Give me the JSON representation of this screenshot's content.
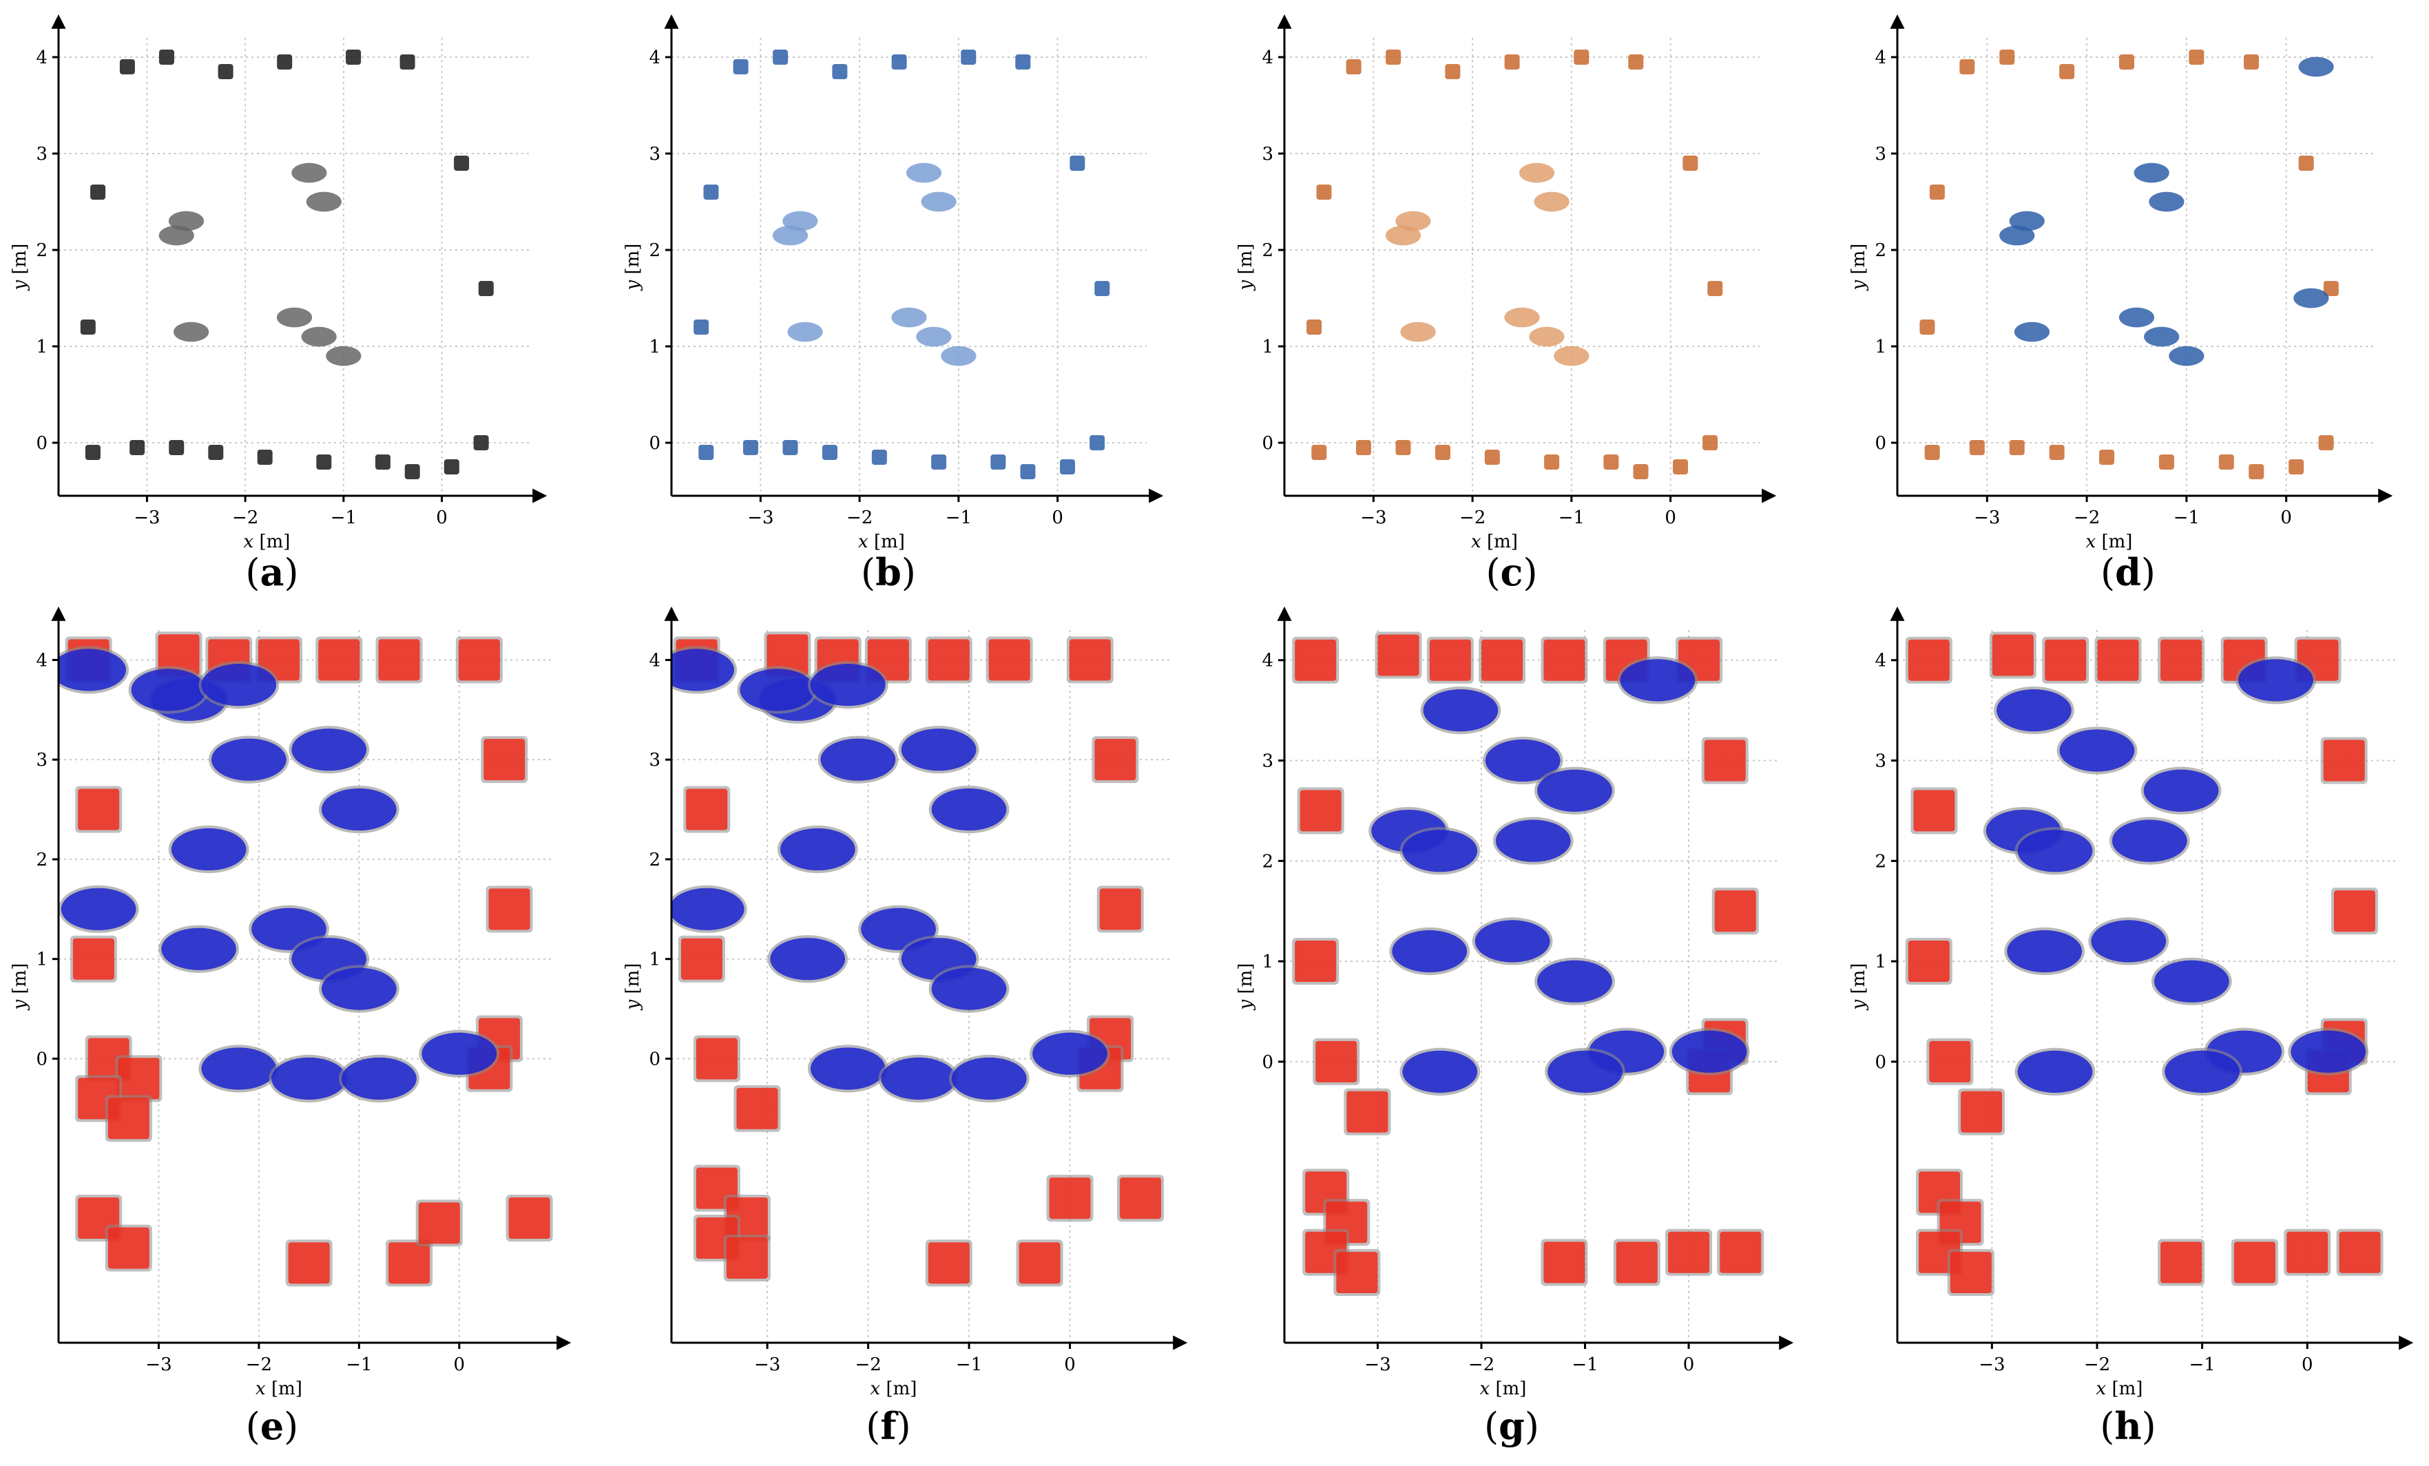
{
  "chart_data": [
    {
      "type": "scatter",
      "panel": "a",
      "caption": "(a)",
      "xlabel": "x [m]",
      "ylabel": "y [m]",
      "xticks": [
        -3,
        -2,
        -1,
        0
      ],
      "yticks": [
        0,
        1,
        2,
        3,
        4
      ],
      "xlim": [
        -3.9,
        0.9
      ],
      "ylim": [
        -0.55,
        4.2
      ],
      "grid": true,
      "colors": {
        "walls": "#1a1a1a",
        "objects": "#666666"
      },
      "series": [
        {
          "role": "walls",
          "color": "#1a1a1a",
          "x": [
            -3.55,
            -3.6,
            -3.5,
            -3.2,
            -2.8,
            -2.2,
            -1.6,
            -0.9,
            -0.35,
            0.2,
            0.45,
            0.4,
            0.1,
            -0.3,
            -0.6,
            -1.2,
            -1.8,
            -2.3,
            -2.7,
            -3.1
          ],
          "y": [
            -0.1,
            1.2,
            2.6,
            3.9,
            4.0,
            3.85,
            3.95,
            4.0,
            3.95,
            2.9,
            1.6,
            0.0,
            -0.25,
            -0.3,
            -0.2,
            -0.2,
            -0.15,
            -0.1,
            -0.05,
            -0.05
          ]
        },
        {
          "role": "objects",
          "color": "#666666",
          "x": [
            -2.6,
            -1.35,
            -1.2,
            -2.7,
            -2.55,
            -1.5,
            -1.25,
            -1.0
          ],
          "y": [
            2.3,
            2.8,
            2.5,
            2.15,
            1.15,
            1.3,
            1.1,
            0.9
          ]
        }
      ]
    },
    {
      "type": "scatter",
      "panel": "b",
      "caption": "(b)",
      "xlabel": "x [m]",
      "ylabel": "y [m]",
      "xticks": [
        -3,
        -2,
        -1,
        0
      ],
      "yticks": [
        0,
        1,
        2,
        3,
        4
      ],
      "xlim": [
        -3.9,
        0.9
      ],
      "ylim": [
        -0.55,
        4.2
      ],
      "grid": true,
      "colors": {
        "walls": "#2f5fa8",
        "objects": "#7b9fd3"
      },
      "series": [
        {
          "role": "walls",
          "color": "#2f5fa8",
          "x": [
            -3.55,
            -3.6,
            -3.5,
            -3.2,
            -2.8,
            -2.2,
            -1.6,
            -0.9,
            -0.35,
            0.2,
            0.45,
            0.4,
            0.1,
            -0.3,
            -0.6,
            -1.2,
            -1.8,
            -2.3,
            -2.7,
            -3.1
          ],
          "y": [
            -0.1,
            1.2,
            2.6,
            3.9,
            4.0,
            3.85,
            3.95,
            4.0,
            3.95,
            2.9,
            1.6,
            0.0,
            -0.25,
            -0.3,
            -0.2,
            -0.2,
            -0.15,
            -0.1,
            -0.05,
            -0.05
          ]
        },
        {
          "role": "objects",
          "color": "#7b9fd3",
          "x": [
            -2.6,
            -1.35,
            -1.2,
            -2.7,
            -2.55,
            -1.5,
            -1.25,
            -1.0
          ],
          "y": [
            2.3,
            2.8,
            2.5,
            2.15,
            1.15,
            1.3,
            1.1,
            0.9
          ]
        }
      ]
    },
    {
      "type": "scatter",
      "panel": "c",
      "caption": "(c)",
      "xlabel": "x [m]",
      "ylabel": "y [m]",
      "xticks": [
        -3,
        -2,
        -1,
        0
      ],
      "yticks": [
        0,
        1,
        2,
        3,
        4
      ],
      "xlim": [
        -3.9,
        0.9
      ],
      "ylim": [
        -0.55,
        4.2
      ],
      "grid": true,
      "colors": {
        "walls": "#c8692e",
        "objects": "#e0a070"
      },
      "series": [
        {
          "role": "walls",
          "color": "#c8692e",
          "x": [
            -3.55,
            -3.6,
            -3.5,
            -3.2,
            -2.8,
            -2.2,
            -1.6,
            -0.9,
            -0.35,
            0.2,
            0.45,
            0.4,
            0.1,
            -0.3,
            -0.6,
            -1.2,
            -1.8,
            -2.3,
            -2.7,
            -3.1
          ],
          "y": [
            -0.1,
            1.2,
            2.6,
            3.9,
            4.0,
            3.85,
            3.95,
            4.0,
            3.95,
            2.9,
            1.6,
            0.0,
            -0.25,
            -0.3,
            -0.2,
            -0.2,
            -0.15,
            -0.1,
            -0.05,
            -0.05
          ]
        },
        {
          "role": "objects",
          "color": "#e0a070",
          "x": [
            -2.6,
            -1.35,
            -1.2,
            -2.7,
            -2.55,
            -1.5,
            -1.25,
            -1.0
          ],
          "y": [
            2.3,
            2.8,
            2.5,
            2.15,
            1.15,
            1.3,
            1.1,
            0.9
          ]
        }
      ]
    },
    {
      "type": "scatter",
      "panel": "d",
      "caption": "(d)",
      "xlabel": "x [m]",
      "ylabel": "y [m]",
      "xticks": [
        -3,
        -2,
        -1,
        0
      ],
      "yticks": [
        0,
        1,
        2,
        3,
        4
      ],
      "xlim": [
        -3.9,
        0.9
      ],
      "ylim": [
        -0.55,
        4.2
      ],
      "grid": true,
      "colors": {
        "walls": "#c8692e",
        "objects": "#2f5fa8"
      },
      "series": [
        {
          "role": "walls",
          "color": "#c8692e",
          "x": [
            -3.55,
            -3.6,
            -3.5,
            -3.2,
            -2.8,
            -2.2,
            -1.6,
            -0.9,
            -0.35,
            0.2,
            0.45,
            0.4,
            0.1,
            -0.3,
            -0.6,
            -1.2,
            -1.8,
            -2.3,
            -2.7,
            -3.1
          ],
          "y": [
            -0.1,
            1.2,
            2.6,
            3.9,
            4.0,
            3.85,
            3.95,
            4.0,
            3.95,
            2.9,
            1.6,
            0.0,
            -0.25,
            -0.3,
            -0.2,
            -0.2,
            -0.15,
            -0.1,
            -0.05,
            -0.05
          ]
        },
        {
          "role": "objects",
          "color": "#2f5fa8",
          "x": [
            -2.6,
            -1.35,
            -1.2,
            -2.7,
            -2.55,
            -1.5,
            -1.25,
            -1.0,
            0.25,
            0.3
          ],
          "y": [
            2.3,
            2.8,
            2.5,
            2.15,
            1.15,
            1.3,
            1.1,
            0.9,
            1.5,
            3.9
          ]
        }
      ]
    },
    {
      "type": "scatter",
      "panel": "e",
      "caption": "(e)",
      "xlabel": "x [m]",
      "ylabel": "y [m]",
      "xticks": [
        -3,
        -2,
        -1,
        0
      ],
      "yticks": [
        0,
        1,
        2,
        3,
        4
      ],
      "xlim": [
        -4.0,
        0.95
      ],
      "ylim": [
        -2.85,
        4.3
      ],
      "grid": true,
      "colors": {
        "walls": "#f02a1a",
        "objects": "#1a22d0",
        "outline": "#8a8a8a"
      },
      "series": [
        {
          "role": "walls",
          "color": "#f02a1a",
          "x": [
            -3.7,
            -3.6,
            -3.65,
            -3.5,
            -3.2,
            -2.8,
            -2.3,
            -1.8,
            -1.2,
            -0.6,
            0.2,
            0.45,
            0.5,
            0.4,
            0.3,
            -3.6,
            -3.3,
            -3.6,
            -3.3,
            -1.5,
            -0.5,
            -0.2,
            0.7
          ],
          "y": [
            4.0,
            2.5,
            1.0,
            0.0,
            -0.2,
            4.05,
            4.0,
            4.0,
            4.0,
            4.0,
            4.0,
            3.0,
            1.5,
            0.2,
            -0.1,
            -0.4,
            -0.6,
            -1.6,
            -1.9,
            -2.05,
            -2.05,
            -1.65,
            -1.6
          ]
        },
        {
          "role": "objects",
          "color": "#1a22d0",
          "x": [
            -2.7,
            -2.1,
            -1.3,
            -1.0,
            -2.5,
            -2.6,
            -1.7,
            -1.3,
            -1.0,
            -2.2,
            -1.5,
            -0.8,
            -3.6,
            -3.7,
            0.0,
            -2.9,
            -2.2
          ],
          "y": [
            3.6,
            3.0,
            3.1,
            2.5,
            2.1,
            1.1,
            1.3,
            1.0,
            0.7,
            -0.1,
            -0.2,
            -0.2,
            1.5,
            3.9,
            0.05,
            3.7,
            3.75
          ]
        }
      ]
    },
    {
      "type": "scatter",
      "panel": "f",
      "caption": "(f)",
      "xlabel": "x [m]",
      "ylabel": "y [m]",
      "xticks": [
        -3,
        -2,
        -1,
        0
      ],
      "yticks": [
        0,
        1,
        2,
        3,
        4
      ],
      "xlim": [
        -3.95,
        1.0
      ],
      "ylim": [
        -2.85,
        4.3
      ],
      "grid": true,
      "colors": {
        "walls": "#f02a1a",
        "objects": "#1a22d0",
        "outline": "#8a8a8a"
      },
      "series": [
        {
          "role": "walls",
          "color": "#f02a1a",
          "x": [
            -3.7,
            -3.6,
            -3.65,
            -3.5,
            -3.1,
            -2.8,
            -2.3,
            -1.8,
            -1.2,
            -0.6,
            0.2,
            0.45,
            0.5,
            0.4,
            0.3,
            -3.5,
            -3.2,
            -3.5,
            -3.2,
            -1.2,
            -0.3,
            0.0,
            0.7
          ],
          "y": [
            4.0,
            2.5,
            1.0,
            0.0,
            -0.5,
            4.05,
            4.0,
            4.0,
            4.0,
            4.0,
            4.0,
            3.0,
            1.5,
            0.2,
            -0.1,
            -1.3,
            -1.6,
            -1.8,
            -2.0,
            -2.05,
            -2.05,
            -1.4,
            -1.4
          ]
        },
        {
          "role": "objects",
          "color": "#1a22d0",
          "x": [
            -2.7,
            -2.1,
            -1.3,
            -1.0,
            -2.5,
            -2.6,
            -1.7,
            -1.3,
            -1.0,
            -2.2,
            -1.5,
            -0.8,
            -3.6,
            -3.7,
            0.0,
            -2.9,
            -2.2
          ],
          "y": [
            3.6,
            3.0,
            3.1,
            2.5,
            2.1,
            1.0,
            1.3,
            1.0,
            0.7,
            -0.1,
            -0.2,
            -0.2,
            1.5,
            3.9,
            0.05,
            3.7,
            3.75
          ]
        }
      ]
    },
    {
      "type": "scatter",
      "panel": "g",
      "caption": "(g)",
      "xlabel": "x [m]",
      "ylabel": "y [m]",
      "xticks": [
        -3,
        -2,
        -1,
        0
      ],
      "yticks": [
        0,
        1,
        2,
        3,
        4
      ],
      "xlim": [
        -3.9,
        0.85
      ],
      "ylim": [
        -2.8,
        4.3
      ],
      "grid": true,
      "colors": {
        "walls": "#f02a1a",
        "objects": "#1a22d0",
        "outline": "#8a8a8a",
        "marker": "#2a9a4a"
      },
      "series": [
        {
          "role": "walls",
          "color": "#f02a1a",
          "x": [
            -3.6,
            -3.55,
            -3.6,
            -3.4,
            -3.1,
            -2.8,
            -2.3,
            -1.8,
            -1.2,
            -0.6,
            0.1,
            0.35,
            0.45,
            0.35,
            0.2,
            -3.5,
            -3.3,
            -3.5,
            -3.2,
            -1.2,
            -0.5,
            0.0,
            0.5
          ],
          "y": [
            4.0,
            2.5,
            1.0,
            0.0,
            -0.5,
            4.05,
            4.0,
            4.0,
            4.0,
            4.0,
            4.0,
            3.0,
            1.5,
            0.2,
            -0.1,
            -1.3,
            -1.6,
            -1.9,
            -2.1,
            -2.0,
            -2.0,
            -1.9,
            -1.9
          ]
        },
        {
          "role": "objects",
          "color": "#1a22d0",
          "x": [
            -2.2,
            -1.6,
            -1.1,
            -2.7,
            -2.4,
            -1.5,
            -2.5,
            -1.7,
            -1.1,
            -0.6,
            -1.0,
            -2.4,
            0.2,
            -0.3
          ],
          "y": [
            3.5,
            3.0,
            2.7,
            2.3,
            2.1,
            2.2,
            1.1,
            1.2,
            0.8,
            0.1,
            -0.1,
            -0.1,
            0.1,
            3.8
          ]
        }
      ]
    },
    {
      "type": "scatter",
      "panel": "h",
      "caption": "(h)",
      "xlabel": "x [m]",
      "ylabel": "y [m]",
      "xticks": [
        -3,
        -2,
        -1,
        0
      ],
      "yticks": [
        0,
        1,
        2,
        3,
        4
      ],
      "xlim": [
        -3.9,
        0.85
      ],
      "ylim": [
        -2.8,
        4.3
      ],
      "grid": true,
      "colors": {
        "walls": "#f02a1a",
        "objects": "#1a22d0",
        "outline": "#8a8a8a",
        "marker": "#2a9a4a"
      },
      "series": [
        {
          "role": "walls",
          "color": "#f02a1a",
          "x": [
            -3.6,
            -3.55,
            -3.6,
            -3.4,
            -3.1,
            -2.8,
            -2.3,
            -1.8,
            -1.2,
            -0.6,
            0.1,
            0.35,
            0.45,
            0.35,
            0.2,
            -3.5,
            -3.3,
            -3.5,
            -3.2,
            -1.2,
            -0.5,
            0.0,
            0.5
          ],
          "y": [
            4.0,
            2.5,
            1.0,
            0.0,
            -0.5,
            4.05,
            4.0,
            4.0,
            4.0,
            4.0,
            4.0,
            3.0,
            1.5,
            0.2,
            -0.1,
            -1.3,
            -1.6,
            -1.9,
            -2.1,
            -2.0,
            -2.0,
            -1.9,
            -1.9
          ]
        },
        {
          "role": "objects",
          "color": "#1a22d0",
          "x": [
            -2.6,
            -2.0,
            -1.2,
            -2.7,
            -2.4,
            -1.5,
            -2.5,
            -1.7,
            -1.1,
            -0.6,
            -1.0,
            -2.4,
            0.2,
            -0.3
          ],
          "y": [
            3.5,
            3.1,
            2.7,
            2.3,
            2.1,
            2.2,
            1.1,
            1.2,
            0.8,
            0.1,
            -0.1,
            -0.1,
            0.1,
            3.8
          ]
        }
      ]
    }
  ]
}
